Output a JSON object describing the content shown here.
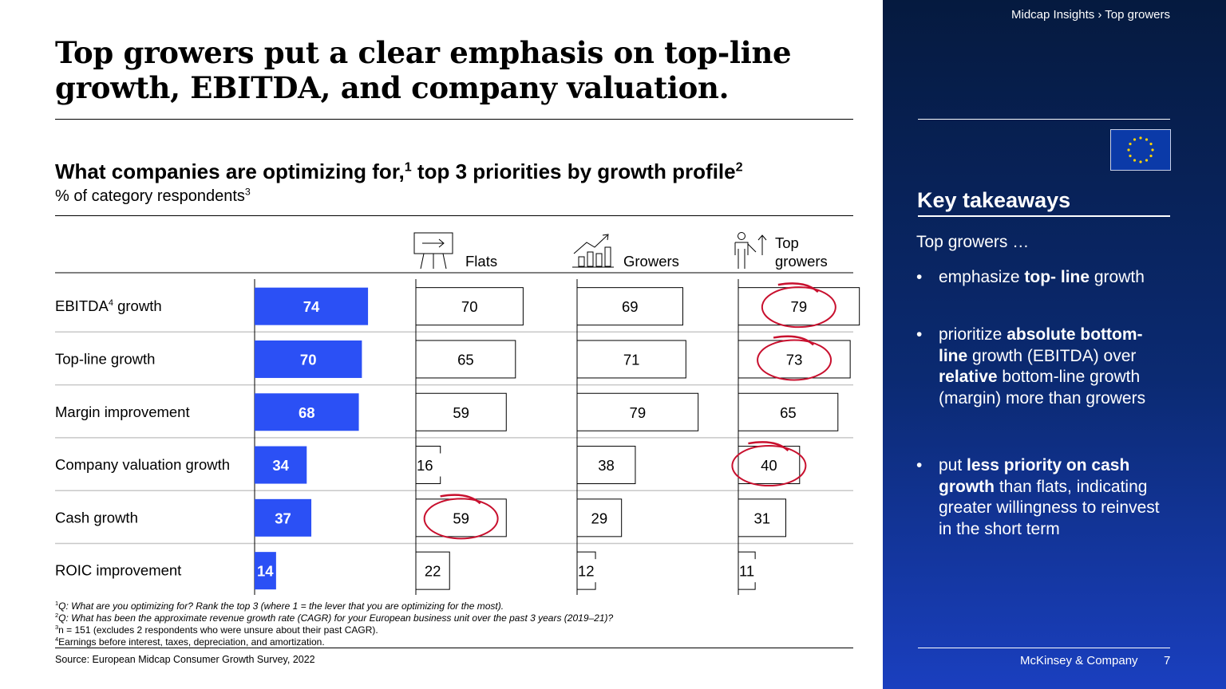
{
  "title": "Top growers put a clear emphasis on top-line growth, EBITDA, and company valuation.",
  "chart_title": "What companies are optimizing for,",
  "chart_title_sup1": "1",
  "chart_title_rest": " top 3 priorities by growth profile",
  "chart_title_sup2": "2",
  "chart_subtitle": "% of category respondents",
  "chart_subtitle_sup": "3",
  "chart_data": {
    "type": "bar",
    "title": "What companies are optimizing for, top 3 priorities by growth profile",
    "ylabel": "% of category respondents",
    "categories": [
      "EBITDA growth",
      "Top-line growth",
      "Margin improvement",
      "Company valuation growth",
      "Cash growth",
      "ROIC improvement"
    ],
    "category_sups": [
      "4",
      "",
      "",
      "",
      "",
      ""
    ],
    "series": [
      {
        "name": "",
        "values": [
          74,
          70,
          68,
          34,
          37,
          14
        ],
        "color": "#2b50f5",
        "filled": true
      },
      {
        "name": "Flats",
        "values": [
          70,
          65,
          59,
          16,
          59,
          22
        ],
        "filled": false,
        "icon": "presentation-board-icon",
        "circled": [
          false,
          false,
          false,
          false,
          true,
          false
        ]
      },
      {
        "name": "Growers",
        "values": [
          69,
          71,
          79,
          38,
          29,
          12
        ],
        "filled": false,
        "icon": "growth-chart-icon",
        "circled": [
          false,
          false,
          false,
          false,
          false,
          false
        ]
      },
      {
        "name": "Top growers",
        "values": [
          79,
          73,
          65,
          40,
          31,
          11
        ],
        "filled": false,
        "icon": "person-arrow-up-icon",
        "circled": [
          true,
          true,
          false,
          true,
          false,
          false
        ]
      }
    ],
    "circle_color": "#c8102e"
  },
  "footnotes": [
    {
      "sup": "1",
      "text": "Q: What are you optimizing for? Rank the top 3 (where 1 = the lever that you are optimizing for the most).",
      "italic": true
    },
    {
      "sup": "2",
      "text": "Q: What has been the approximate revenue growth rate (CAGR) for your European business unit over the past 3 years (2019–21)?",
      "italic": true
    },
    {
      "sup": "3",
      "text": "n = 151 (excludes 2 respondents who were unsure about their past CAGR).",
      "italic": false
    },
    {
      "sup": "4",
      "text": "Earnings before interest, taxes, depreciation, and amortization.",
      "italic": false
    }
  ],
  "source": "Source: European Midcap Consumer Growth Survey, 2022",
  "panel": {
    "breadcrumb": "Midcap Insights › Top growers",
    "key_takeaways": "Key takeaways",
    "intro": "Top growers …",
    "bullets": [
      [
        {
          "t": "emphasize ",
          "b": false
        },
        {
          "t": "top- line",
          "b": true
        },
        {
          "t": " growth",
          "b": false
        }
      ],
      [
        {
          "t": "prioritize ",
          "b": false
        },
        {
          "t": "absolute bottom-line",
          "b": true
        },
        {
          "t": " growth (EBITDA) over ",
          "b": false
        },
        {
          "t": "relative",
          "b": true
        },
        {
          "t": " bottom-line growth (margin) more than growers",
          "b": false
        }
      ],
      [
        {
          "t": "put ",
          "b": false
        },
        {
          "t": "less priority on cash growth",
          "b": true
        },
        {
          "t": " than flats, indicating greater willingness to reinvest in the short term",
          "b": false
        }
      ]
    ],
    "brand": "McKinsey & Company",
    "page_number": "7",
    "flag_icon": "eu-flag-icon",
    "flag_color": "#0b3aa8",
    "star_color": "#ffd400"
  }
}
